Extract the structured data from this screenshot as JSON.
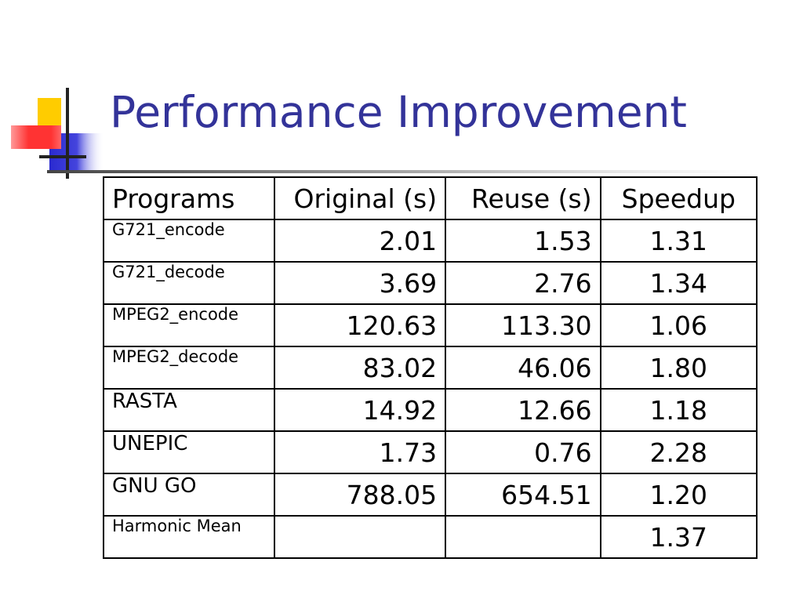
{
  "title": "Performance Improvement",
  "colors": {
    "title": "#333399",
    "deco_yellow": "#ffcc00",
    "deco_red": "#ff3333",
    "deco_blue": "#3333cc"
  },
  "table": {
    "headers": [
      "Programs",
      "Original (s)",
      "Reuse (s)",
      "Speedup"
    ],
    "rows": [
      {
        "program": "G721_encode",
        "original": "2.01",
        "reuse": "1.53",
        "speedup": "1.31"
      },
      {
        "program": "G721_decode",
        "original": "3.69",
        "reuse": "2.76",
        "speedup": "1.34"
      },
      {
        "program": "MPEG2_encode",
        "original": "120.63",
        "reuse": "113.30",
        "speedup": "1.06"
      },
      {
        "program": "MPEG2_decode",
        "original": "83.02",
        "reuse": "46.06",
        "speedup": "1.80"
      },
      {
        "program": "RASTA",
        "original": "14.92",
        "reuse": "12.66",
        "speedup": "1.18"
      },
      {
        "program": "UNEPIC",
        "original": "1.73",
        "reuse": "0.76",
        "speedup": "2.28"
      },
      {
        "program": "GNU GO",
        "original": "788.05",
        "reuse": "654.51",
        "speedup": "1.20"
      },
      {
        "program": "Harmonic Mean",
        "original": "",
        "reuse": "",
        "speedup": "1.37"
      }
    ]
  }
}
